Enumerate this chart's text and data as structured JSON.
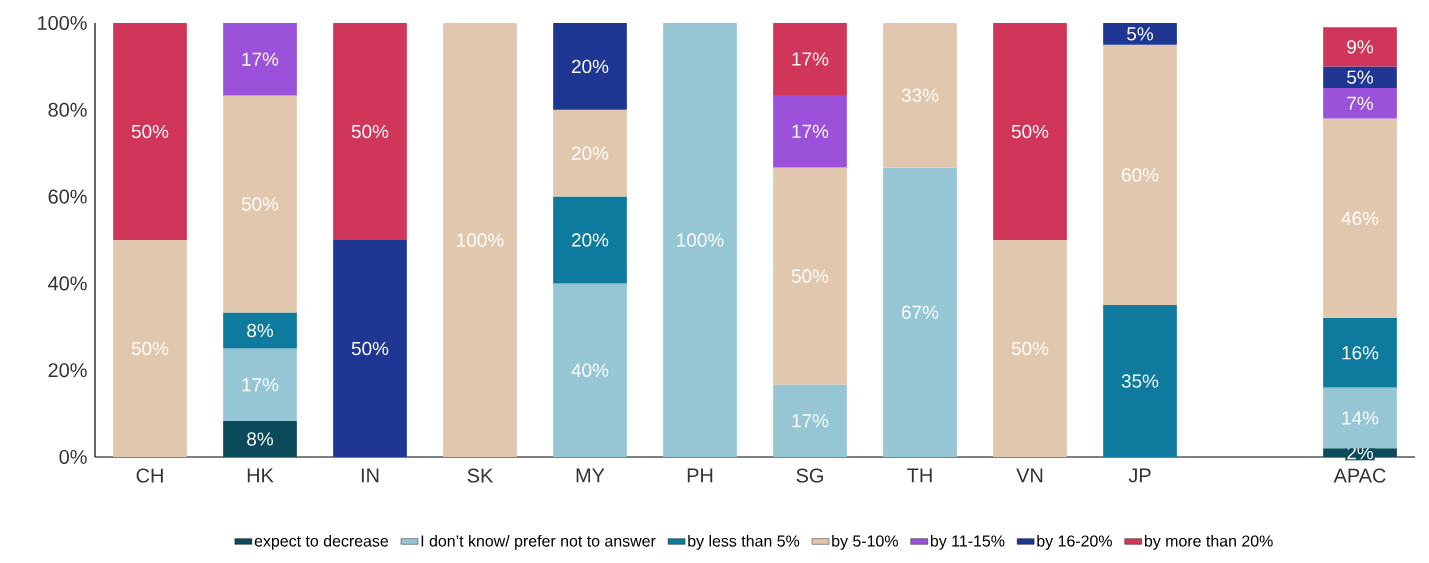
{
  "chart_data": {
    "type": "bar",
    "stacked": true,
    "legend": "bottom",
    "categories": [
      "CH",
      "HK",
      "IN",
      "SK",
      "MY",
      "PH",
      "SG",
      "TH",
      "VN",
      "JP",
      null,
      "APAC"
    ],
    "ylim": [
      0,
      100
    ],
    "yticks": [
      {
        "value": 0,
        "label": "0%"
      },
      {
        "value": 20,
        "label": "20%"
      },
      {
        "value": 40,
        "label": "40%"
      },
      {
        "value": 60,
        "label": "60%"
      },
      {
        "value": 80,
        "label": "80%"
      },
      {
        "value": 100,
        "label": "100%"
      }
    ],
    "series": [
      {
        "name": "expect to decrease",
        "color": "#0b4a5b",
        "values": [
          null,
          8.3,
          null,
          null,
          null,
          null,
          null,
          null,
          null,
          null,
          null,
          2
        ],
        "value_labels": [
          null,
          "8%",
          null,
          null,
          null,
          null,
          null,
          null,
          null,
          null,
          null,
          "2%"
        ]
      },
      {
        "name": "I don’t know/ prefer not to answer",
        "color": "#96c5d4",
        "values": [
          null,
          16.7,
          null,
          null,
          40,
          100,
          16.7,
          66.7,
          null,
          null,
          null,
          14
        ],
        "value_labels": [
          null,
          "17%",
          null,
          null,
          "40%",
          "100%",
          "17%",
          "67%",
          null,
          null,
          null,
          "14%"
        ]
      },
      {
        "name": "by less than 5%",
        "color": "#0e7a9e",
        "values": [
          null,
          8.3,
          null,
          null,
          20,
          null,
          null,
          null,
          null,
          35,
          null,
          16
        ],
        "value_labels": [
          null,
          "8%",
          null,
          null,
          "20%",
          null,
          null,
          null,
          null,
          "35%",
          null,
          "16%"
        ]
      },
      {
        "name": "by 5-10%",
        "color": "#e1c7ad",
        "values": [
          50,
          50,
          null,
          100,
          20,
          null,
          50,
          33.3,
          50,
          60,
          null,
          46
        ],
        "value_labels": [
          "50%",
          "50%",
          null,
          "100%",
          "20%",
          null,
          "50%",
          "33%",
          "50%",
          "60%",
          null,
          "46%"
        ]
      },
      {
        "name": "by 11-15%",
        "color": "#9b51d9",
        "values": [
          null,
          16.7,
          null,
          null,
          null,
          null,
          16.7,
          null,
          null,
          null,
          null,
          7
        ],
        "value_labels": [
          null,
          "17%",
          null,
          null,
          null,
          null,
          "17%",
          null,
          null,
          null,
          null,
          "7%"
        ]
      },
      {
        "name": "by 16-20%",
        "color": "#1f3793",
        "values": [
          null,
          null,
          50,
          null,
          20,
          null,
          null,
          null,
          null,
          5,
          null,
          5
        ],
        "value_labels": [
          null,
          null,
          "50%",
          null,
          "20%",
          null,
          null,
          null,
          null,
          "5%",
          null,
          "5%"
        ]
      },
      {
        "name": "by more than 20%",
        "color": "#d0355a",
        "values": [
          50,
          null,
          50,
          null,
          null,
          null,
          16.6,
          null,
          50,
          null,
          null,
          9
        ],
        "value_labels": [
          "50%",
          null,
          "50%",
          null,
          null,
          null,
          "17%",
          null,
          "50%",
          null,
          null,
          "9%"
        ]
      }
    ]
  }
}
